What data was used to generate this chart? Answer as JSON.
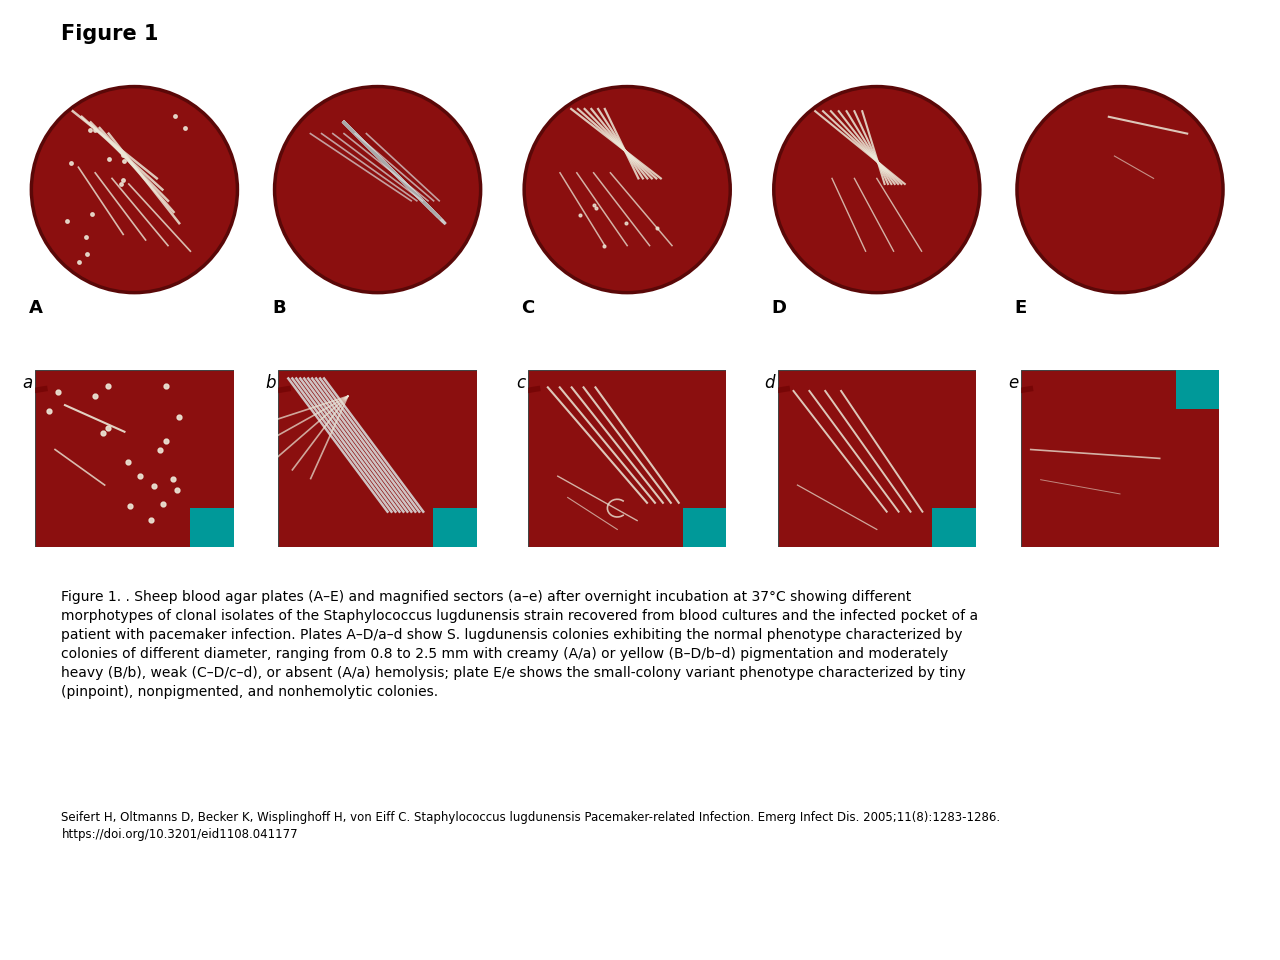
{
  "title": "Figure 1",
  "title_fontsize": 15,
  "title_fontweight": "bold",
  "background_color": "#ffffff",
  "figure_width": 12.8,
  "figure_height": 9.6,
  "plate_labels": [
    "A",
    "B",
    "C",
    "D",
    "E"
  ],
  "magnified_labels": [
    "a",
    "b",
    "c",
    "d",
    "e"
  ],
  "plate_color": "#8B0F0F",
  "plate_edge_color": "#5a0808",
  "teal_color": "#009999",
  "colony_color_white": "#ede8d8",
  "colony_color_gray": "#aaaaaa",
  "caption_text": "Figure 1. . Sheep blood agar plates (A–E) and magnified sectors (a–e) after overnight incubation at 37°C showing different\nmorphotypes of clonal isolates of the Staphylococcus lugdunensis strain recovered from blood cultures and the infected pocket of a\npatient with pacemaker infection. Plates A–D/a–d show S. lugdunensis colonies exhibiting the normal phenotype characterized by\ncolonies of different diameter, ranging from 0.8 to 2.5 mm with creamy (A/a) or yellow (B–D/b–d) pigmentation and moderately\nheavy (B/b), weak (C–D/c–d), or absent (A/a) hemolysis; plate E/e shows the small-colony variant phenotype characterized by tiny\n(pinpoint), nonpigmented, and nonhemolytic colonies.",
  "citation_text": "Seifert H, Oltmanns D, Becker K, Wisplinghoff H, von Eiff C. Staphylococcus lugdunensis Pacemaker-related Infection. Emerg Infect Dis. 2005;11(8):1283-1286.\nhttps://doi.org/10.3201/eid1108.041177",
  "caption_fontsize": 10.0,
  "citation_fontsize": 8.5
}
